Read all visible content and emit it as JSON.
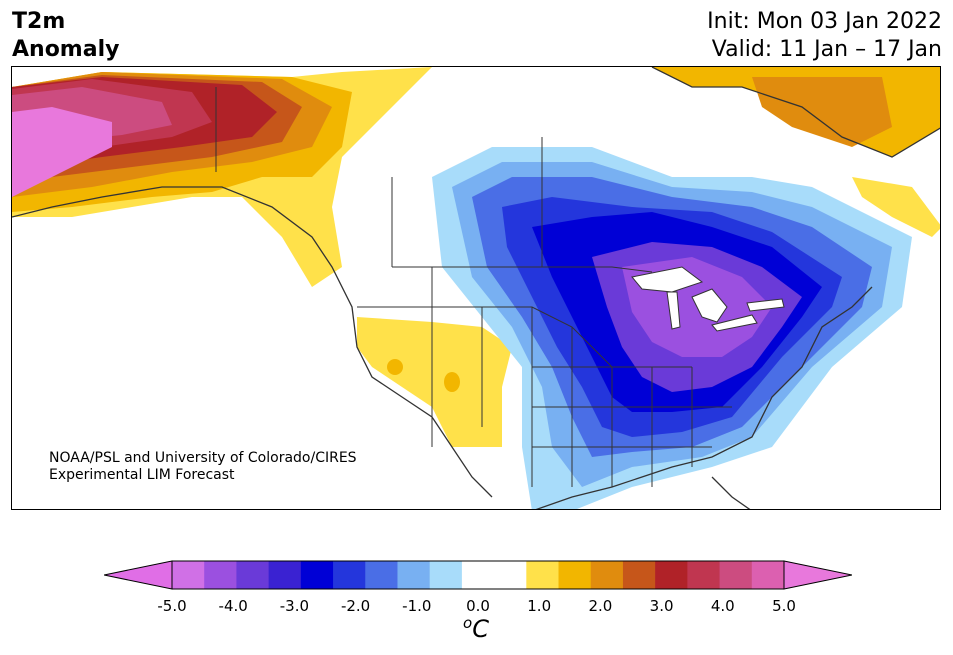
{
  "title": {
    "line1": "T2m",
    "line2": "Anomaly"
  },
  "info": {
    "init": "Init: Mon 03 Jan 2022",
    "valid": "Valid: 11 Jan – 17 Jan"
  },
  "credit": {
    "line1": "NOAA/PSL and University of Colorado/CIRES",
    "line2": "Experimental LIM Forecast"
  },
  "colorbar": {
    "ticks": [
      "-5.0",
      "-4.0",
      "-3.0",
      "-2.0",
      "-1.0",
      "0.0",
      "1.0",
      "2.0",
      "3.0",
      "4.0",
      "5.0"
    ],
    "colors": [
      "#d070e6",
      "#9b50e0",
      "#6a3ad8",
      "#3a22d2",
      "#0000d6",
      "#2436dc",
      "#4a6ee6",
      "#78b0f2",
      "#a8dcfa",
      "#ffffff",
      "#ffffff",
      "#ffe14a",
      "#f2b600",
      "#e08c0e",
      "#c6561a",
      "#b02228",
      "#c03650",
      "#cc4c80",
      "#dc60b0"
    ],
    "under_color": "#e06ee6",
    "over_color": "#e878dc",
    "unit_base": "C",
    "unit_sup": "o"
  }
}
